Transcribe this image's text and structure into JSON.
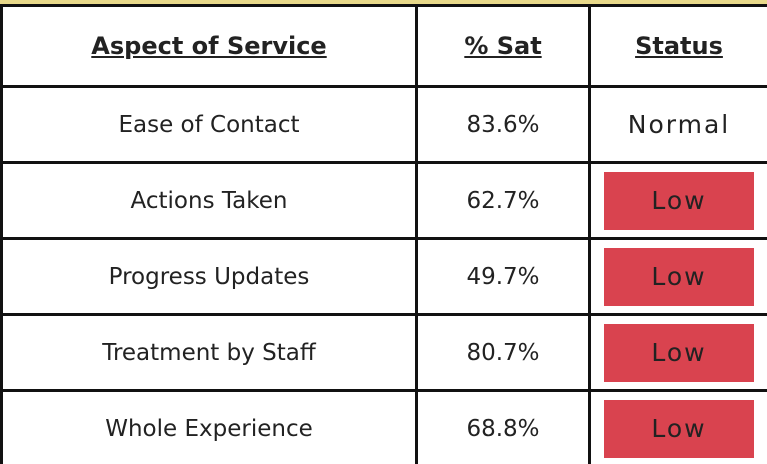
{
  "table": {
    "header": [
      "Aspect of Service",
      "% Sat",
      "Status"
    ],
    "rows": [
      [
        "Ease of Contact",
        "83.6%",
        "Normal"
      ],
      [
        "Actions Taken",
        "62.7%",
        "Low"
      ],
      [
        "Progress Updates",
        "49.7%",
        "Low"
      ],
      [
        "Treatment by Staff",
        "80.7%",
        "Low"
      ],
      [
        "Whole Experience",
        "68.8%",
        "Low"
      ]
    ]
  }
}
